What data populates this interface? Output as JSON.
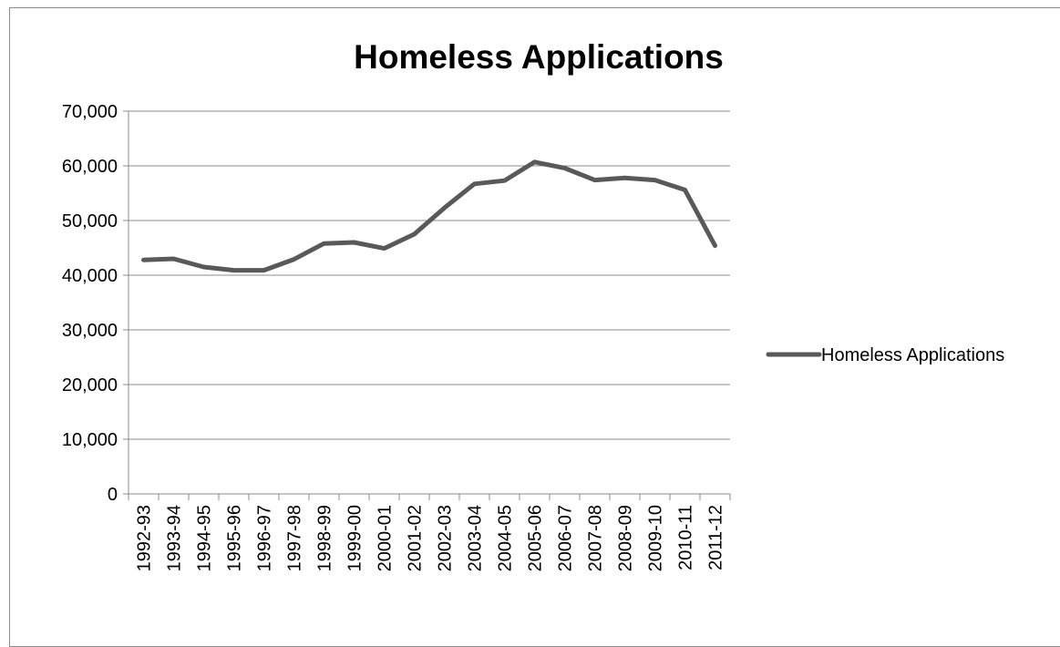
{
  "chart_data": {
    "type": "line",
    "title": "Homeless Applications",
    "xlabel": "",
    "ylabel": "",
    "categories": [
      "1992-93",
      "1993-94",
      "1994-95",
      "1995-96",
      "1996-97",
      "1997-98",
      "1998-99",
      "1999-00",
      "2000-01",
      "2001-02",
      "2002-03",
      "2003-04",
      "2004-05",
      "2005-06",
      "2006-07",
      "2007-08",
      "2008-09",
      "2009-10",
      "2010-11",
      "2011-12"
    ],
    "series": [
      {
        "name": "Homeless Applications",
        "color": "#595959",
        "values": [
          42800,
          43000,
          41500,
          40900,
          40900,
          42900,
          45800,
          46000,
          44900,
          47500,
          52300,
          56700,
          57300,
          60700,
          59600,
          57400,
          57800,
          57400,
          55600,
          45400
        ]
      }
    ],
    "ylim": [
      0,
      70000
    ],
    "yticks": [
      0,
      10000,
      20000,
      30000,
      40000,
      50000,
      60000,
      70000
    ],
    "ytick_labels": [
      "0",
      "10,000",
      "20,000",
      "30,000",
      "40,000",
      "50,000",
      "60,000",
      "70,000"
    ],
    "grid": true,
    "legend_position": "right"
  }
}
